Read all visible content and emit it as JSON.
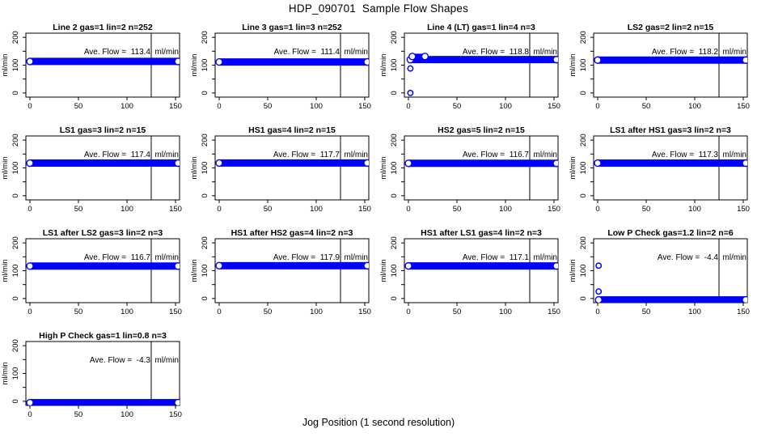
{
  "title": "HDP_090701  Sample Flow Shapes",
  "xlabel": "Jog Position (1 second resolution)",
  "colors": {
    "point": "#0000FF",
    "axis": "#000000",
    "background": "#FFFFFF"
  },
  "chart_data": {
    "type": "scatter",
    "layout": {
      "rows": 4,
      "cols": 4,
      "used_panels": 13
    },
    "xlim": [
      -5,
      155
    ],
    "ylim": [
      -15,
      215
    ],
    "x_ticks": [
      0,
      50,
      100,
      150
    ],
    "x_tick_labels": [
      "0",
      "50",
      "100",
      "150"
    ],
    "y_ticks_all": [
      0,
      50,
      100,
      150,
      200
    ],
    "y_ticks_labeled": [
      0,
      100,
      200
    ],
    "y_tick_labels": [
      "0",
      "100",
      "200"
    ],
    "ylabel": "ml/min",
    "vline_x": 125,
    "annotation_prefix": "Ave. Flow =",
    "flow_unit": "ml/min",
    "panels": [
      {
        "title": "Line 2 gas=1 lin=2 n=252",
        "ave_flow": "113.4",
        "band": {
          "y": 113.4,
          "x0": 0,
          "x1": 152.5
        },
        "segments": [],
        "outliers": []
      },
      {
        "title": "Line 3 gas=1 lin=3 n=252",
        "ave_flow": "111.4",
        "band": {
          "y": 111.4,
          "x0": 0,
          "x1": 152.5
        },
        "segments": [],
        "outliers": []
      },
      {
        "title": "Line 4 (LT) gas=1 lin=4 n=3",
        "ave_flow": "118.8",
        "band": {
          "y": 120.0,
          "x0": 2,
          "x1": 152.5
        },
        "segments": [
          {
            "y": 131,
            "x0": 4,
            "x1": 17
          }
        ],
        "outliers": [
          {
            "x": 2,
            "y": 0
          },
          {
            "x": 2,
            "y": 88
          }
        ]
      },
      {
        "title": "LS2 gas=2 lin=2 n=15",
        "ave_flow": "118.2",
        "band": {
          "y": 118.2,
          "x0": 0,
          "x1": 152.5
        },
        "segments": [],
        "outliers": []
      },
      {
        "title": "LS1 gas=3 lin=2 n=15",
        "ave_flow": "117.4",
        "band": {
          "y": 117.4,
          "x0": 0,
          "x1": 152.5
        },
        "segments": [],
        "outliers": []
      },
      {
        "title": "HS1 gas=4 lin=2 n=15",
        "ave_flow": "117.7",
        "band": {
          "y": 117.7,
          "x0": 0,
          "x1": 152.5
        },
        "segments": [],
        "outliers": []
      },
      {
        "title": "HS2 gas=5 lin=2 n=15",
        "ave_flow": "116.7",
        "band": {
          "y": 116.7,
          "x0": 0,
          "x1": 152.5
        },
        "segments": [],
        "outliers": []
      },
      {
        "title": "LS1 after HS1 gas=3 lin=2 n=3",
        "ave_flow": "117.3",
        "band": {
          "y": 117.3,
          "x0": 0,
          "x1": 152.5
        },
        "segments": [],
        "outliers": []
      },
      {
        "title": "LS1 after LS2 gas=3 lin=2 n=3",
        "ave_flow": "116.7",
        "band": {
          "y": 116.7,
          "x0": 0,
          "x1": 152.5
        },
        "segments": [],
        "outliers": []
      },
      {
        "title": "HS1 after HS2 gas=4 lin=2 n=3",
        "ave_flow": "117.9",
        "band": {
          "y": 117.9,
          "x0": 0,
          "x1": 152.5
        },
        "segments": [],
        "outliers": []
      },
      {
        "title": "HS1 after LS1 gas=4 lin=2 n=3",
        "ave_flow": "117.1",
        "band": {
          "y": 117.1,
          "x0": 0,
          "x1": 152.5
        },
        "segments": [],
        "outliers": []
      },
      {
        "title": "Low P Check gas=1.2 lin=2 n=6",
        "ave_flow": "-4.4",
        "band": {
          "y": -5.0,
          "x0": 1,
          "x1": 152.5
        },
        "segments": [],
        "outliers": [
          {
            "x": 1,
            "y": 118
          },
          {
            "x": 1,
            "y": 25
          }
        ]
      },
      {
        "title": "High P Check gas=1 lin=0.8 n=3",
        "ave_flow": "-4.3",
        "band": {
          "y": -5.0,
          "x0": 0,
          "x1": 152.5
        },
        "segments": [],
        "outliers": []
      }
    ]
  }
}
